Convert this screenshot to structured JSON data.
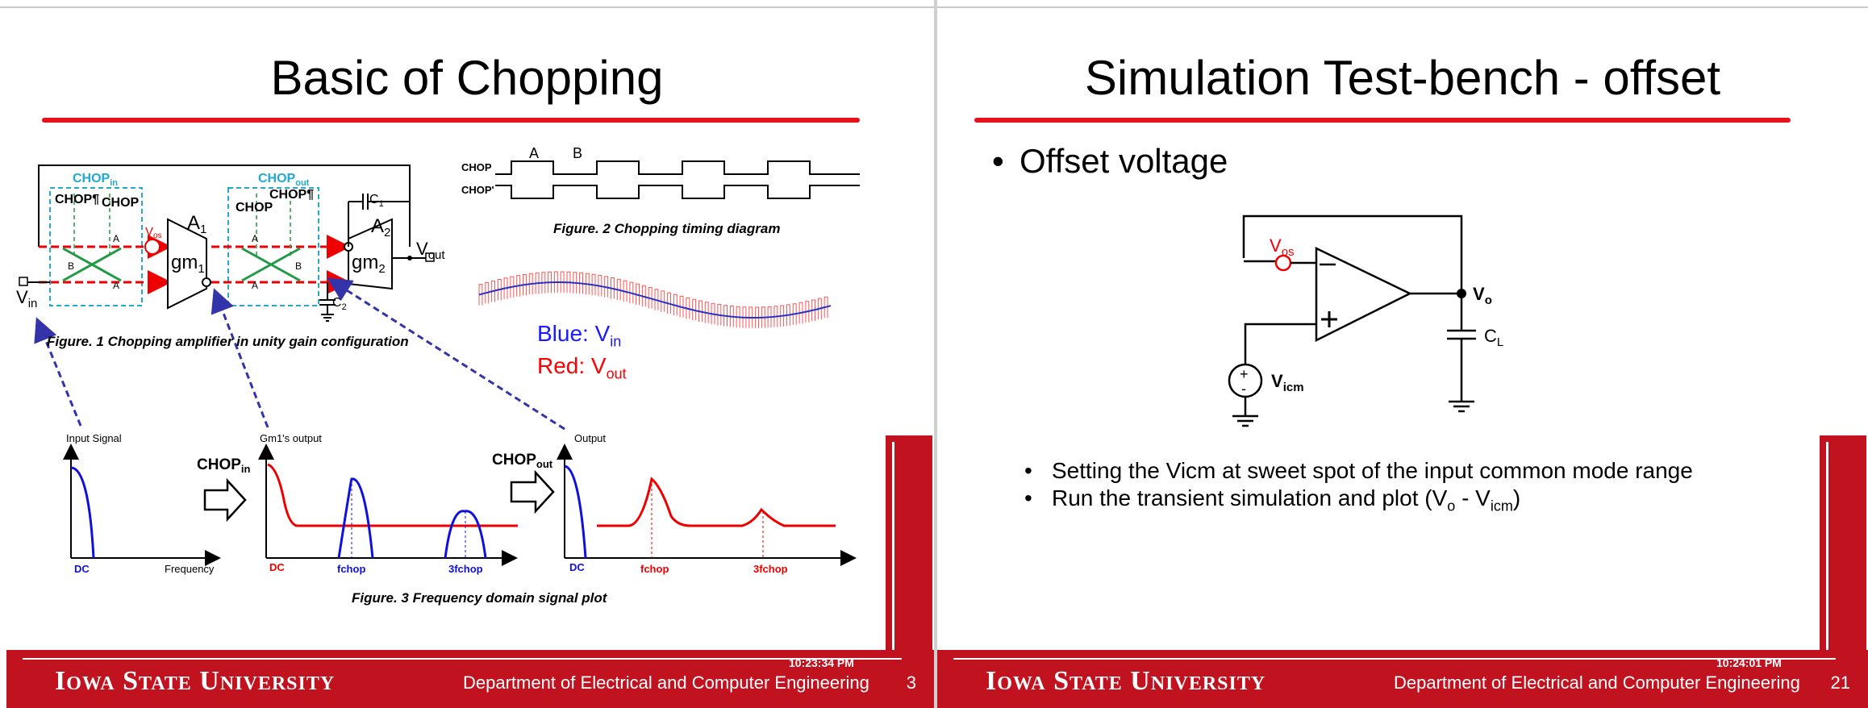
{
  "slide_left": {
    "title": "Basic of Chopping",
    "fig1": {
      "caption": "Figure. 1 Chopping amplifier in unity gain configuration",
      "chop_in_label": "CHOP",
      "chop_in_sub": "in",
      "chop_out_label": "CHOP",
      "chop_out_sub": "out",
      "chop_bar": "CHOP¶",
      "chop": "CHOP",
      "vos": "V",
      "vos_sub": "os",
      "a1": "A",
      "a1_sub": "1",
      "gm1": "gm",
      "gm1_sub": "1",
      "a2": "A",
      "a2_sub": "2",
      "gm2": "gm",
      "gm2_sub": "2",
      "c1": "C",
      "c1_sub": "1",
      "c2": "C",
      "c2_sub": "2",
      "vout": "V",
      "vout_sub": "out",
      "vin": "V",
      "vin_sub": "in",
      "switch_a": "A",
      "switch_b": "B"
    },
    "fig2": {
      "caption": "Figure. 2 Chopping timing diagram",
      "chop": "CHOP",
      "chop_prime": "CHOP'",
      "label_a": "A",
      "label_b": "B"
    },
    "legend": {
      "blue_prefix": "Blue: V",
      "blue_sub": "in",
      "red_prefix": "Red: V",
      "red_sub": "out",
      "blue_color": "#1a1aff",
      "red_color": "#ff0000"
    },
    "fig3": {
      "caption": "Figure. 3 Frequency domain signal plot",
      "plot1_title": "Input Signal",
      "plot1_x": "Frequency",
      "plot1_dc": "DC",
      "arrow1_label": "CHOP",
      "arrow1_sub": "in",
      "plot2_title": "Gm1's output",
      "plot2_dc": "DC",
      "plot2_f": "fchop",
      "plot2_3f": "3fchop",
      "arrow2_label": "CHOP",
      "arrow2_sub": "out",
      "plot3_title": "Output",
      "plot3_dc": "DC",
      "plot3_f": "fchop",
      "plot3_3f": "3fchop"
    },
    "footer": {
      "university": "Iowa State University",
      "department": "Department of Electrical and Computer Engineering",
      "time": "10:23:34 PM",
      "page": "3"
    }
  },
  "slide_right": {
    "title": "Simulation Test-bench - offset",
    "bullet_main": "Offset voltage",
    "circuit": {
      "vos": "V",
      "vos_sub": "os",
      "vo": "V",
      "vo_sub": "o",
      "cl": "C",
      "cl_sub": "L",
      "vicm": "V",
      "vicm_sub": "icm"
    },
    "sub_bullets": {
      "first": "Setting the Vicm at sweet spot of the input common mode range",
      "second_prefix": "Run the transient simulation and plot (V",
      "second_sub1": "o",
      "second_mid": " - V",
      "second_sub2": "icm",
      "second_suffix": ")"
    },
    "footer": {
      "university": "Iowa State University",
      "department": "Department of Electrical and Computer Engineering",
      "time": "10:24:01 PM",
      "page": "21"
    }
  }
}
